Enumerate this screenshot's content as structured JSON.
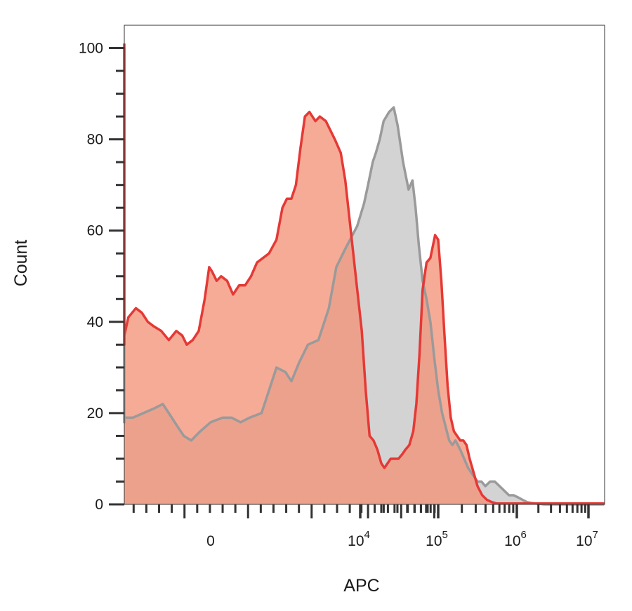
{
  "chart_data": {
    "type": "area",
    "xlabel": "APC",
    "ylabel": "Count",
    "ylim": [
      0,
      105
    ],
    "y_ticks": [
      0,
      20,
      40,
      60,
      80,
      100
    ],
    "x_scale": "biexponential",
    "x_ticks": [
      {
        "base": "0",
        "exp": ""
      },
      {
        "base": "10",
        "exp": "4"
      },
      {
        "base": "10",
        "exp": "5"
      },
      {
        "base": "10",
        "exp": "6"
      },
      {
        "base": "10",
        "exp": "7"
      }
    ],
    "grid": false,
    "legend": "none",
    "series": [
      {
        "color": "#9a9a9a",
        "fill": "#d3d3d3",
        "x": [
          -1.72,
          -1.7,
          -1.68,
          -1.62,
          -1.58,
          -1.52,
          -1.45,
          -1.38,
          -1.32,
          -1.28,
          -1.22,
          -1.18,
          -1.13,
          -1.07,
          -1.0,
          -0.92,
          -0.86,
          -0.8,
          -0.74,
          -0.66,
          -0.61,
          -0.56,
          -0.5,
          -0.46,
          -0.41,
          -0.35,
          -0.28,
          -0.21,
          -0.16,
          -0.1,
          -0.02,
          0.05,
          0.1,
          0.16,
          0.2,
          0.25,
          0.3,
          0.37,
          0.43,
          0.48,
          0.55,
          0.62,
          0.67,
          0.71,
          0.75,
          0.8,
          0.85,
          0.9,
          0.95,
          1.0,
          1.05,
          1.08,
          1.11,
          1.14,
          1.18,
          1.22,
          1.28,
          1.33,
          1.38,
          1.42,
          1.46,
          1.5,
          1.55,
          1.6,
          1.66,
          1.72,
          1.78,
          1.84,
          1.9,
          1.96,
          2.02,
          2.08,
          2.14,
          2.2,
          2.26,
          2.32,
          2.38,
          2.44,
          2.5,
          2.56,
          2.62,
          2.68,
          2.75,
          2.82,
          2.9,
          2.98,
          3.05,
          3.1,
          3.15,
          3.22
        ],
        "y": [
          100,
          60,
          22,
          18,
          19,
          19,
          20,
          21,
          22,
          20,
          17,
          15,
          14,
          16,
          18,
          19,
          19,
          18,
          19,
          20,
          25,
          30,
          29,
          27,
          31,
          35,
          36,
          43,
          52,
          56,
          61,
          66,
          70,
          75,
          77,
          80,
          84,
          86,
          87,
          83,
          75,
          69,
          71,
          65,
          57,
          49,
          45,
          40,
          32,
          25,
          20,
          18,
          16,
          14,
          13,
          14,
          12,
          10,
          8,
          7,
          6,
          5,
          5,
          4,
          5,
          5,
          4,
          3,
          2,
          2,
          1.5,
          1,
          0.5,
          0.3,
          0.2,
          0.1,
          0,
          0,
          0,
          0,
          0,
          0,
          0,
          0,
          0,
          0,
          0,
          0,
          0,
          0
        ]
      },
      {
        "color": "#e53935",
        "fill": "#f4937a",
        "x": [
          -1.72,
          -1.7,
          -1.68,
          -1.64,
          -1.6,
          -1.55,
          -1.5,
          -1.46,
          -1.42,
          -1.38,
          -1.33,
          -1.28,
          -1.23,
          -1.19,
          -1.16,
          -1.12,
          -1.08,
          -1.04,
          -1.01,
          -0.99,
          -0.96,
          -0.93,
          -0.89,
          -0.85,
          -0.81,
          -0.77,
          -0.73,
          -0.69,
          -0.65,
          -0.61,
          -0.56,
          -0.52,
          -0.49,
          -0.46,
          -0.43,
          -0.4,
          -0.37,
          -0.34,
          -0.3,
          -0.27,
          -0.23,
          -0.2,
          -0.17,
          -0.13,
          -0.1,
          -0.07,
          -0.03,
          0.02,
          0.07,
          0.12,
          0.17,
          0.22,
          0.27,
          0.31,
          0.35,
          0.39,
          0.44,
          0.49,
          0.54,
          0.58,
          0.63,
          0.68,
          0.72,
          0.76,
          0.8,
          0.85,
          0.9,
          0.96,
          1.0,
          1.04,
          1.08,
          1.12,
          1.16,
          1.2,
          1.24,
          1.28,
          1.32,
          1.36,
          1.4,
          1.45,
          1.5,
          1.56,
          1.62,
          1.68,
          1.74,
          1.8,
          1.86,
          1.92,
          1.97,
          2.0,
          2.04,
          2.08,
          2.12,
          2.16,
          2.2,
          2.25,
          2.3,
          2.38,
          2.46,
          2.54,
          2.62,
          2.7,
          2.8,
          2.9,
          3.0,
          3.1,
          3.22
        ],
        "y": [
          101,
          75,
          36,
          35,
          37,
          41,
          43,
          42,
          40,
          39,
          38,
          36,
          38,
          37,
          35,
          36,
          38,
          45,
          52,
          51,
          49,
          50,
          49,
          46,
          48,
          48,
          50,
          53,
          54,
          55,
          58,
          65,
          67,
          67,
          70,
          78,
          85,
          86,
          84,
          85,
          84,
          82,
          80,
          77,
          71,
          62,
          50,
          38,
          25,
          15,
          14,
          12,
          9,
          8,
          9,
          10,
          10,
          10,
          11,
          12,
          13,
          16,
          22,
          33,
          47,
          53,
          54,
          59,
          58,
          49,
          37,
          26,
          19,
          16,
          15,
          14,
          14,
          13,
          10,
          7,
          4,
          2,
          1,
          0.5,
          0.2,
          0.2,
          0.2,
          0.2,
          0.2,
          0.2,
          0.2,
          0.2,
          0.2,
          0.2,
          0.2,
          0.2,
          0.2,
          0.2,
          0.2,
          0.2,
          0.2,
          0.2,
          0.2,
          0.2,
          0.2,
          0.2,
          0.2
        ]
      }
    ]
  }
}
